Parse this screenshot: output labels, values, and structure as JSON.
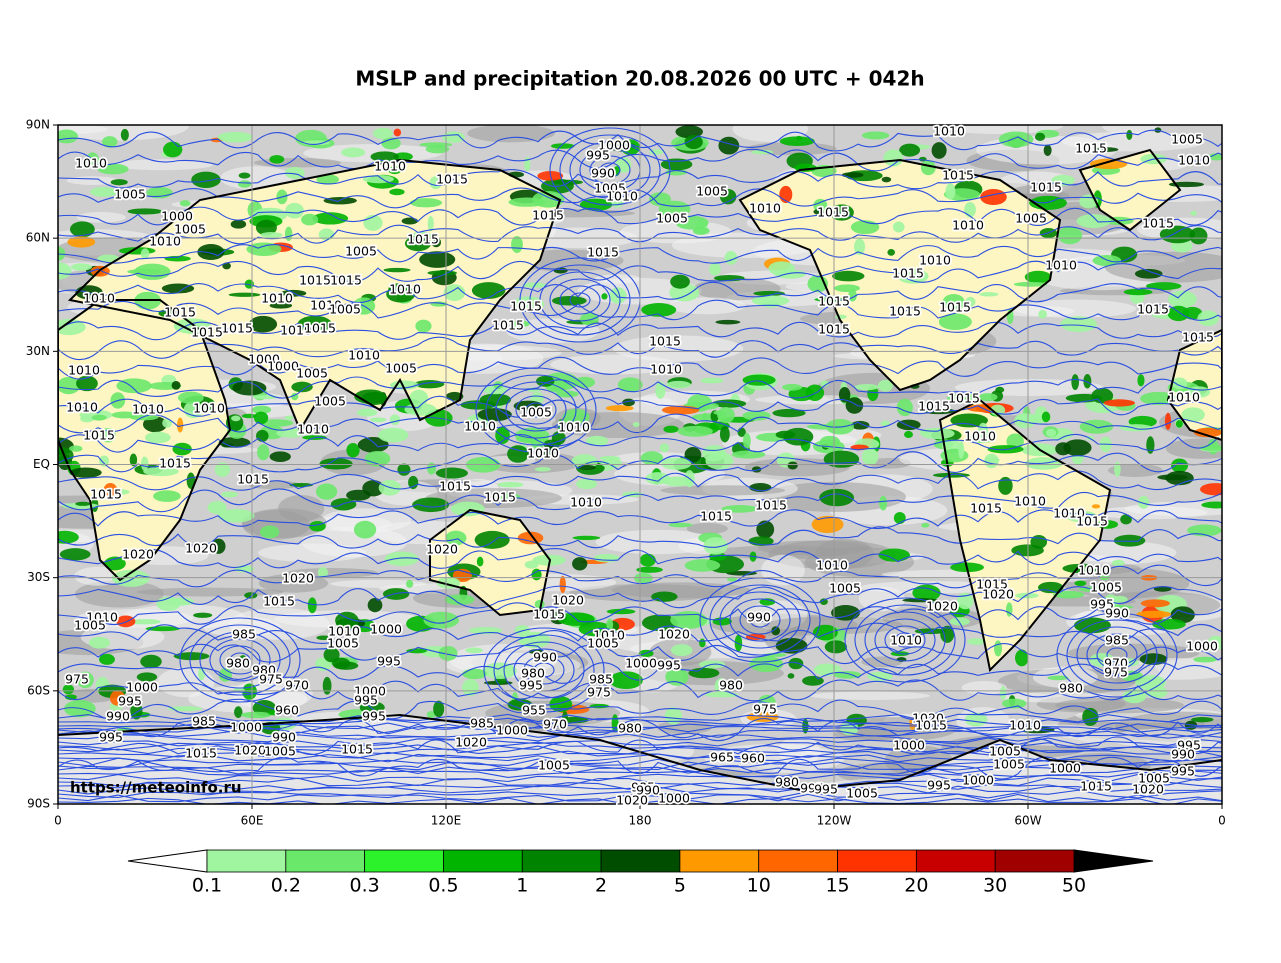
{
  "map": {
    "title": "MSLP and precipitation 20.08.2026 00 UTC + 042h",
    "xlim": [
      0,
      360
    ],
    "ylim": [
      -90,
      90
    ],
    "xticks": [
      {
        "value": 0,
        "label": "0"
      },
      {
        "value": 60,
        "label": "60E"
      },
      {
        "value": 120,
        "label": "120E"
      },
      180,
      {
        "value": 240,
        "label": "120W"
      },
      {
        "value": 300,
        "label": "60W"
      },
      {
        "value": 360,
        "label": "0"
      }
    ],
    "yticks": [
      {
        "value": 90,
        "label": "90N"
      },
      {
        "value": 60,
        "label": "60N"
      },
      {
        "value": 30,
        "label": "30N"
      },
      {
        "value": 0,
        "label": "EQ"
      },
      {
        "value": -30,
        "label": "30S"
      },
      {
        "value": -60,
        "label": "60S"
      },
      {
        "value": -90,
        "label": "90S"
      }
    ],
    "grid": true,
    "credit": "https://meteoinfo.ru"
  },
  "colorbar": {
    "levels": [
      0.1,
      0.2,
      0.3,
      0.5,
      1,
      2,
      5,
      10,
      15,
      20,
      30,
      50
    ],
    "colors": [
      "#a0f5a0",
      "#6ae86a",
      "#2cf22c",
      "#00b400",
      "#008400",
      "#004d00",
      "#ff9900",
      "#ff6600",
      "#ff3300",
      "#c80000",
      "#a00000"
    ],
    "under_color": "#ffffff",
    "over_color": "#000000"
  },
  "isobars": {
    "color": "#2b4fe0",
    "labels": [
      1010,
      1005,
      1000,
      1005,
      1010,
      1010,
      1015,
      1000,
      995,
      990,
      1005,
      1010,
      1005,
      1010,
      1010,
      1005,
      1015,
      1010,
      1015,
      1015,
      1015,
      1005,
      1015,
      1010,
      1005,
      1015,
      1015,
      1005,
      1015,
      1010,
      1010,
      1015,
      1015,
      1015,
      1010,
      1010,
      1010,
      1010,
      1005,
      1015,
      1015,
      1015,
      1015,
      1015,
      1015,
      1015,
      1015,
      1010,
      1015,
      1015,
      1015,
      1015,
      1015,
      1000,
      1010,
      1000,
      1010,
      1005,
      1005,
      1010,
      1005,
      1010,
      1010,
      1010,
      1005,
      1015,
      1015,
      1010,
      1015,
      1010,
      1010,
      1010,
      1010,
      1010,
      1015,
      1015,
      1015,
      1015,
      1010,
      1015,
      1010,
      1015,
      1015,
      1015,
      1010,
      1015,
      1020,
      1020,
      1020,
      1010,
      1010,
      1020,
      1005,
      1015,
      1005,
      1020,
      1015,
      1020,
      995,
      1010,
      1005,
      1020,
      1015,
      990,
      990,
      985,
      1010,
      1000,
      1010,
      1005,
      1020,
      1005,
      1010,
      985,
      1000,
      990,
      980,
      980,
      995,
      1000,
      995,
      975,
      970,
      975,
      975,
      970,
      980,
      985,
      1000,
      1000,
      995,
      995,
      975,
      980,
      980,
      990,
      995,
      960,
      975,
      985,
      1000,
      995,
      955,
      970,
      985,
      980,
      1020,
      1015,
      1010,
      995,
      990,
      1000,
      1020,
      1000,
      1015,
      1020,
      1005,
      1015,
      965,
      960,
      1005,
      995,
      990,
      1005,
      1000,
      995,
      1005,
      1005,
      980,
      1000,
      995,
      985,
      1015,
      1020,
      995,
      995,
      1005,
      990,
      1000,
      1020
    ]
  }
}
